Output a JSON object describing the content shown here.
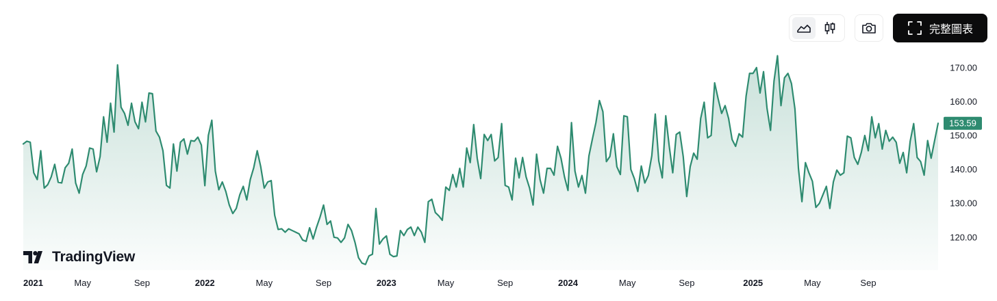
{
  "toolbar": {
    "line_icon": "line-chart-icon",
    "candle_icon": "candlestick-icon",
    "camera_icon": "camera-icon",
    "fullchart_icon": "fullscreen-icon",
    "fullchart_label": "完整圖表"
  },
  "brand": {
    "name": "TradingView",
    "logo_icon": "tradingview-logo-icon"
  },
  "colors": {
    "line": "#2e8b70",
    "area_top": "#2e8b70",
    "badge_bg": "#2e8b70",
    "axis_text": "#131722"
  },
  "chart_data": {
    "type": "area",
    "grid": false,
    "legend": "none",
    "last_price_label": "153.59",
    "ylim": [
      111,
      175
    ],
    "y_ticks": [
      120,
      130,
      140,
      150,
      160,
      170
    ],
    "y_tick_labels": [
      "120.00",
      "130.00",
      "140.00",
      "150.00",
      "160.00",
      "170.00"
    ],
    "x_ticks": [
      {
        "label": "2021",
        "major": true,
        "t": 0
      },
      {
        "label": "May",
        "major": false,
        "t": 17
      },
      {
        "label": "Sep",
        "major": false,
        "t": 34
      },
      {
        "label": "2022",
        "major": true,
        "t": 52
      },
      {
        "label": "May",
        "major": false,
        "t": 69
      },
      {
        "label": "Sep",
        "major": false,
        "t": 86
      },
      {
        "label": "2023",
        "major": true,
        "t": 104
      },
      {
        "label": "May",
        "major": false,
        "t": 121
      },
      {
        "label": "Sep",
        "major": false,
        "t": 138
      },
      {
        "label": "2024",
        "major": true,
        "t": 156
      },
      {
        "label": "May",
        "major": false,
        "t": 173
      },
      {
        "label": "Sep",
        "major": false,
        "t": 190
      },
      {
        "label": "2025",
        "major": true,
        "t": 209
      },
      {
        "label": "May",
        "major": false,
        "t": 226
      },
      {
        "label": "Sep",
        "major": false,
        "t": 242
      }
    ],
    "series": [
      {
        "values": [
          147.5,
          148.3,
          148,
          139,
          137,
          145.5,
          134.5,
          135.5,
          137.8,
          141.5,
          136.2,
          136,
          140.5,
          141.8,
          146,
          136,
          133,
          138.5,
          141,
          146.3,
          146,
          139.3,
          143.8,
          155.5,
          148,
          159.5,
          151,
          170.8,
          158.3,
          156.5,
          153,
          159.5,
          154,
          152,
          159.8,
          154,
          162.5,
          162.3,
          151.3,
          149.5,
          145.5,
          135.3,
          134.5,
          147.5,
          139.5,
          148,
          149,
          144.5,
          148.5,
          148.3,
          149.5,
          147.2,
          135.2,
          150,
          154.5,
          139.5,
          134,
          136.3,
          133.5,
          129.5,
          127,
          128.5,
          132.5,
          135,
          131,
          137,
          140.5,
          145.5,
          140.8,
          134.5,
          136.3,
          136.7,
          126.5,
          122.3,
          122.5,
          121.5,
          122.5,
          122,
          121.5,
          121,
          119.2,
          118.8,
          122.8,
          119.5,
          123,
          126,
          129.5,
          123.8,
          124.8,
          120,
          119.8,
          118.5,
          119.8,
          123.8,
          122,
          118.5,
          114,
          112.4,
          112,
          114.5,
          115,
          128.5,
          118,
          119.5,
          120.4,
          115,
          114.3,
          114.5,
          122,
          120.5,
          122.3,
          123,
          120.5,
          123,
          121.5,
          118.5,
          130.5,
          131.2,
          127.3,
          126.3,
          125,
          134.8,
          133.8,
          138.5,
          134.8,
          140.3,
          134.8,
          146.3,
          142,
          153.2,
          143.3,
          137.3,
          150.3,
          148.5,
          150.3,
          142.5,
          143.5,
          153.5,
          135.3,
          134.8,
          131,
          143.3,
          137.5,
          143.5,
          137.8,
          134.5,
          129.5,
          144.5,
          137,
          133,
          140.3,
          140.3,
          138.3,
          146.8,
          143.3,
          137.8,
          133.8,
          153.8,
          139.5,
          134.8,
          138.2,
          133,
          144,
          149,
          153.8,
          160.3,
          157,
          142.3,
          143.8,
          150.5,
          140.8,
          138.5,
          155.8,
          155.5,
          140,
          137.3,
          133.5,
          141,
          136,
          138.2,
          144,
          156.3,
          142.5,
          137.5,
          155.8,
          146.8,
          139,
          150.3,
          151,
          143.8,
          132,
          140.8,
          144.8,
          143,
          155,
          159.8,
          149.3,
          150,
          165.5,
          160.8,
          156.5,
          158.8,
          155,
          148.8,
          146.8,
          150.5,
          149.5,
          161.5,
          168.3,
          168.3,
          170,
          162.5,
          168.8,
          158,
          151.5,
          166,
          173.5,
          158.8,
          167,
          168.3,
          165.3,
          157.8,
          140.3,
          130.5,
          142,
          139,
          136.5,
          128.8,
          130,
          132.5,
          135,
          128.5,
          136.3,
          139.8,
          138.3,
          139,
          149.8,
          149.3,
          143.5,
          141.5,
          145,
          150,
          145.5,
          155.5,
          149.3,
          153.5,
          146,
          151.5,
          148.3,
          149.5,
          148,
          141.8,
          145,
          139,
          148.3,
          153.5,
          143.5,
          142.3,
          138.3,
          148.5,
          143.3,
          148.5,
          153.59
        ]
      }
    ]
  }
}
